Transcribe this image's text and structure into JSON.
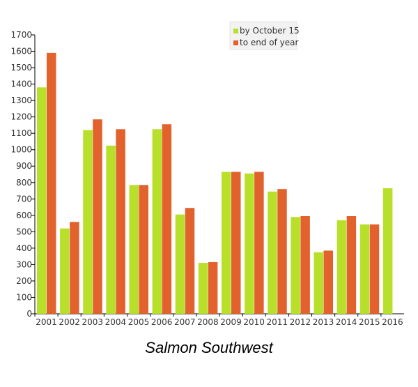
{
  "chart_data": {
    "type": "bar",
    "title": "Salmon Southwest",
    "xlabel": "",
    "ylabel": "",
    "ylim": [
      0,
      1700
    ],
    "yticks": [
      0,
      100,
      200,
      300,
      400,
      500,
      600,
      700,
      800,
      900,
      1000,
      1100,
      1200,
      1300,
      1400,
      1500,
      1600,
      1700
    ],
    "categories": [
      "2001",
      "2002",
      "2003",
      "2004",
      "2005",
      "2006",
      "2007",
      "2008",
      "2009",
      "2010",
      "2011",
      "2012",
      "2013",
      "2014",
      "2015",
      "2016"
    ],
    "series": [
      {
        "name": "by October 15",
        "color": "#b8e02a",
        "values": [
          1380,
          520,
          1120,
          1025,
          785,
          1125,
          605,
          310,
          865,
          855,
          745,
          590,
          375,
          570,
          545,
          765
        ]
      },
      {
        "name": "to end of year",
        "color": "#e2622e",
        "values": [
          1590,
          560,
          1185,
          1125,
          785,
          1155,
          645,
          315,
          865,
          865,
          760,
          595,
          385,
          595,
          545,
          null
        ]
      }
    ],
    "legend": {
      "position": "top-right"
    },
    "grid": false
  }
}
